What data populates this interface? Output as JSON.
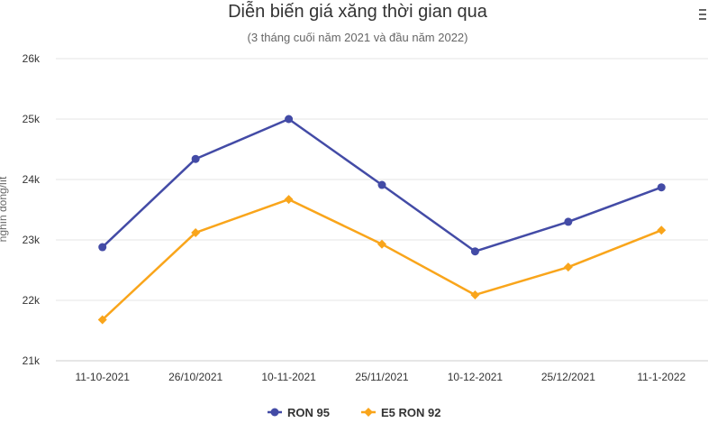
{
  "chart_data": {
    "type": "line",
    "title": "Diễn biến giá xăng thời gian qua",
    "subtitle": "(3 tháng cuối năm 2021 và đầu năm 2022)",
    "ylabel": "nghìn đồng/lít",
    "xlabel": "",
    "categories": [
      "11-10-2021",
      "26/10/2021",
      "10-11-2021",
      "25/11/2021",
      "10-12-2021",
      "25/12/2021",
      "11-1-2022"
    ],
    "y_ticks": [
      "21k",
      "22k",
      "23k",
      "24k",
      "25k",
      "26k"
    ],
    "ylim": [
      21000,
      26000
    ],
    "grid": true,
    "legend_position": "bottom",
    "series": [
      {
        "name": "RON 95",
        "color": "#434ba6",
        "marker": "circle",
        "values": [
          22880,
          24340,
          25000,
          23910,
          22810,
          23300,
          23870
        ]
      },
      {
        "name": "E5 RON 92",
        "color": "#f9a51b",
        "marker": "diamond",
        "values": [
          21680,
          23120,
          23670,
          22930,
          22090,
          22550,
          23160
        ]
      }
    ]
  },
  "menu": {
    "icon": "hamburger-menu-icon"
  }
}
